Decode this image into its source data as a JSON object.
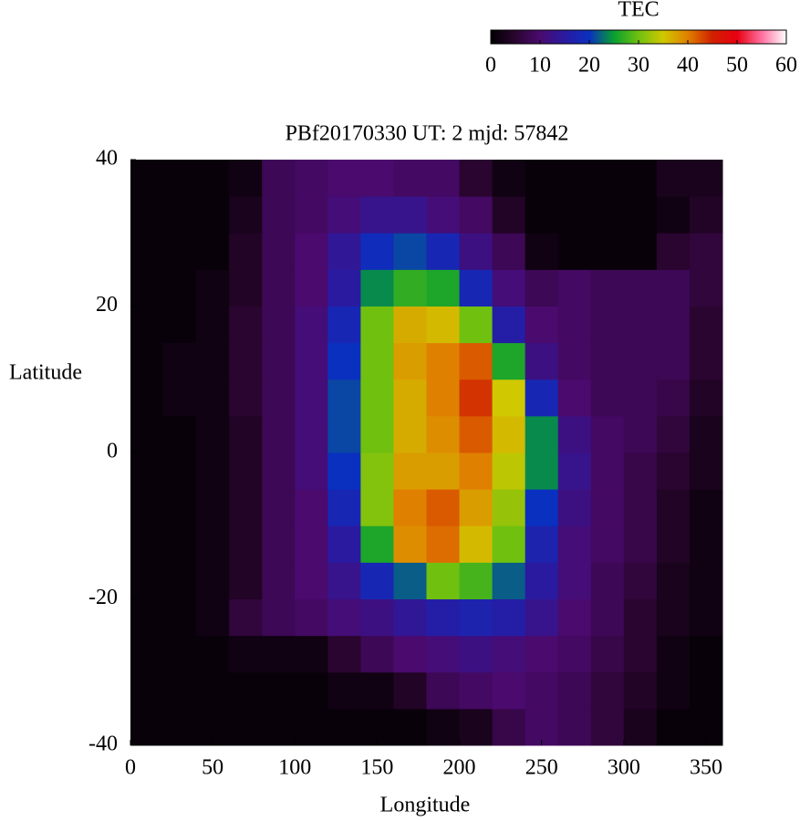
{
  "chart_data": {
    "type": "heatmap",
    "title": "PBf20170330  UT: 2  mjd: 57842",
    "x_label": "Longitude",
    "y_label": "Latitude",
    "x": [
      10,
      30,
      50,
      70,
      90,
      110,
      130,
      150,
      170,
      190,
      210,
      230,
      250,
      270,
      290,
      310,
      330,
      350
    ],
    "y": [
      -37.5,
      -32.5,
      -27.5,
      -22.5,
      -17.5,
      -12.5,
      -7.5,
      -2.5,
      2.5,
      7.5,
      12.5,
      17.5,
      22.5,
      27.5,
      32.5,
      37.5
    ],
    "z": [
      [
        1,
        1,
        1,
        1,
        1,
        1,
        1,
        1,
        1,
        2,
        3,
        7,
        9,
        8,
        6,
        3,
        1,
        1
      ],
      [
        1,
        1,
        1,
        1,
        1,
        1,
        2,
        2,
        4,
        8,
        9,
        10,
        9,
        8,
        6,
        4,
        2,
        1
      ],
      [
        1,
        1,
        1,
        2,
        2,
        2,
        5,
        8,
        10,
        11,
        12,
        11,
        10,
        9,
        7,
        5,
        2,
        1
      ],
      [
        1,
        1,
        2,
        6,
        8,
        9,
        11,
        12,
        14,
        16,
        17,
        16,
        13,
        10,
        8,
        5,
        3,
        2
      ],
      [
        1,
        1,
        2,
        4,
        8,
        10,
        13,
        18,
        22,
        30,
        28,
        22,
        15,
        11,
        8,
        6,
        3,
        2
      ],
      [
        1,
        1,
        2,
        4,
        8,
        10,
        15,
        26,
        39,
        41,
        36,
        30,
        17,
        11,
        9,
        7,
        4,
        2
      ],
      [
        1,
        1,
        2,
        4,
        8,
        10,
        18,
        31,
        40,
        42,
        38,
        32,
        20,
        12,
        9,
        7,
        4,
        2
      ],
      [
        1,
        1,
        2,
        4,
        8,
        11,
        20,
        31,
        38,
        38,
        40,
        34,
        24,
        13,
        9,
        7,
        5,
        3
      ],
      [
        1,
        1,
        2,
        4,
        8,
        11,
        21,
        30,
        37,
        39,
        42,
        36,
        24,
        12,
        9,
        8,
        6,
        3
      ],
      [
        1,
        2,
        2,
        5,
        8,
        11,
        21,
        30,
        37,
        40,
        44,
        35,
        18,
        10,
        8,
        8,
        7,
        4
      ],
      [
        1,
        2,
        2,
        5,
        8,
        11,
        20,
        30,
        38,
        40,
        42,
        26,
        12,
        9,
        8,
        8,
        8,
        5
      ],
      [
        1,
        1,
        2,
        5,
        8,
        11,
        18,
        30,
        37,
        36,
        30,
        16,
        10,
        9,
        8,
        8,
        8,
        5
      ],
      [
        1,
        1,
        2,
        4,
        8,
        10,
        15,
        24,
        27,
        26,
        18,
        11,
        8,
        9,
        8,
        8,
        8,
        6
      ],
      [
        1,
        1,
        1,
        4,
        8,
        10,
        14,
        19,
        21,
        18,
        12,
        8,
        2,
        1,
        1,
        1,
        5,
        6
      ],
      [
        1,
        1,
        1,
        3,
        8,
        9,
        11,
        13,
        13,
        11,
        9,
        4,
        1,
        1,
        1,
        1,
        2,
        4
      ],
      [
        1,
        1,
        1,
        2,
        8,
        9,
        10,
        10,
        9,
        9,
        5,
        2,
        1,
        1,
        1,
        1,
        3,
        3
      ]
    ],
    "cell_width": 20,
    "cell_height": 5,
    "xlim": [
      0,
      360
    ],
    "ylim": [
      -40,
      40
    ],
    "xticks": [
      0,
      50,
      100,
      150,
      200,
      250,
      300,
      350
    ],
    "yticks": [
      -40,
      -20,
      0,
      20,
      40
    ],
    "colorbar": {
      "label": "TEC",
      "lim": [
        0,
        60
      ],
      "ticks": [
        0,
        10,
        20,
        30,
        40,
        50,
        60
      ],
      "colormap": [
        "#000000",
        "#2a0530",
        "#4a0a6e",
        "#2a1aa0",
        "#0a30c0",
        "#08a030",
        "#70c010",
        "#d0c800",
        "#e08000",
        "#d02000",
        "#e80010",
        "#ff70a0",
        "#ffffff"
      ]
    }
  }
}
